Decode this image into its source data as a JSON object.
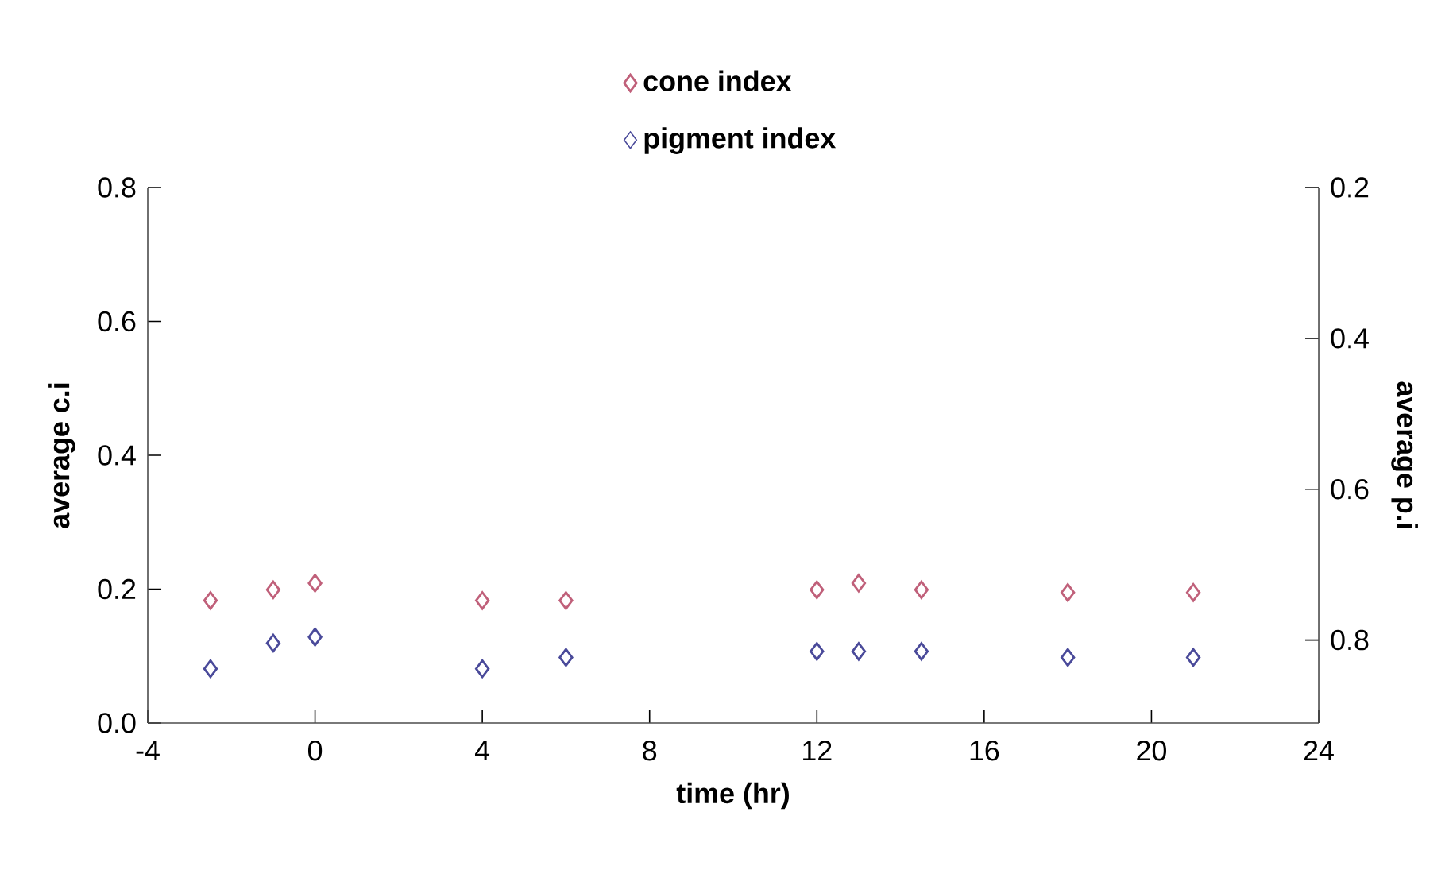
{
  "chart_data": {
    "type": "scatter",
    "xlabel": "time (hr)",
    "ylabel": "average c.i",
    "y2label": "average p.i",
    "x": [
      -2.5,
      -1,
      0,
      4,
      6,
      12,
      13,
      14.5,
      18,
      21
    ],
    "series": [
      {
        "name": "cone index",
        "color": "#c0607a",
        "values": [
          0.183,
          0.199,
          0.209,
          0.183,
          0.183,
          0.199,
          0.209,
          0.199,
          0.195,
          0.195
        ]
      },
      {
        "name": "pigment index",
        "color": "#4a4a9a",
        "axis": "y2",
        "values": [
          0.838,
          0.804,
          0.796,
          0.838,
          0.823,
          0.815,
          0.815,
          0.815,
          0.823,
          0.823
        ]
      }
    ],
    "xlim": [
      -4,
      24
    ],
    "xticks": [
      -4,
      0,
      4,
      8,
      12,
      16,
      20,
      24
    ],
    "ylim": [
      0,
      0.8
    ],
    "yticks": [
      {
        "value": 0,
        "label": "0.0"
      },
      0.2,
      0.4,
      0.6,
      0.8
    ],
    "y2lim": [
      0.91,
      0.2
    ],
    "y2ticks": [
      0.2,
      0.4,
      0.6,
      0.8
    ],
    "marker": "diamond",
    "legend": "top",
    "grid": false
  }
}
